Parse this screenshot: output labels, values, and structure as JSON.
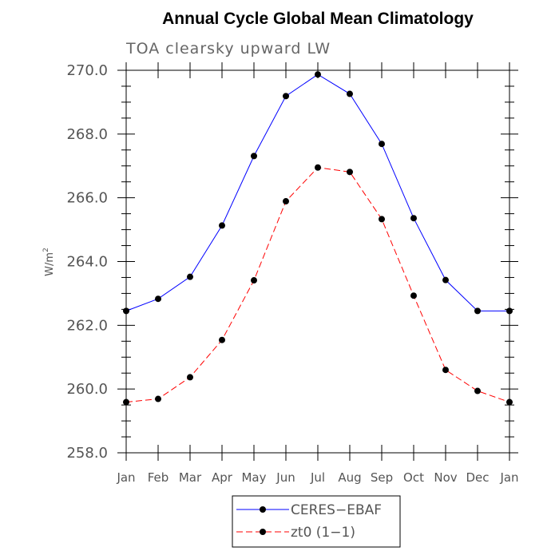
{
  "chart_data": {
    "type": "line",
    "title": "Annual Cycle Global Mean Climatology",
    "subtitle": "TOA clearsky upward LW",
    "ylabel": "W/m",
    "ylabel_superscript": "2",
    "xlabel": "",
    "categories": [
      "Jan",
      "Feb",
      "Mar",
      "Apr",
      "May",
      "Jun",
      "Jul",
      "Aug",
      "Sep",
      "Oct",
      "Nov",
      "Dec",
      "Jan"
    ],
    "ylim": [
      258.0,
      270.0
    ],
    "yticks": [
      "258.0",
      "260.0",
      "262.0",
      "264.0",
      "266.0",
      "268.0",
      "270.0"
    ],
    "grid": false,
    "legend": "bottom",
    "series": [
      {
        "name": "CERES−EBAF",
        "color": "#0000ff",
        "dash": "solid",
        "values": [
          262.45,
          262.83,
          263.52,
          265.13,
          267.31,
          269.19,
          269.87,
          269.26,
          267.69,
          265.36,
          263.42,
          262.45,
          262.45
        ]
      },
      {
        "name": "zt0 (1−1)",
        "color": "#ff0000",
        "dash": "dashed",
        "values": [
          259.59,
          259.69,
          260.37,
          261.54,
          263.41,
          265.89,
          266.95,
          266.81,
          265.33,
          262.93,
          260.6,
          259.94,
          259.59
        ]
      }
    ]
  }
}
